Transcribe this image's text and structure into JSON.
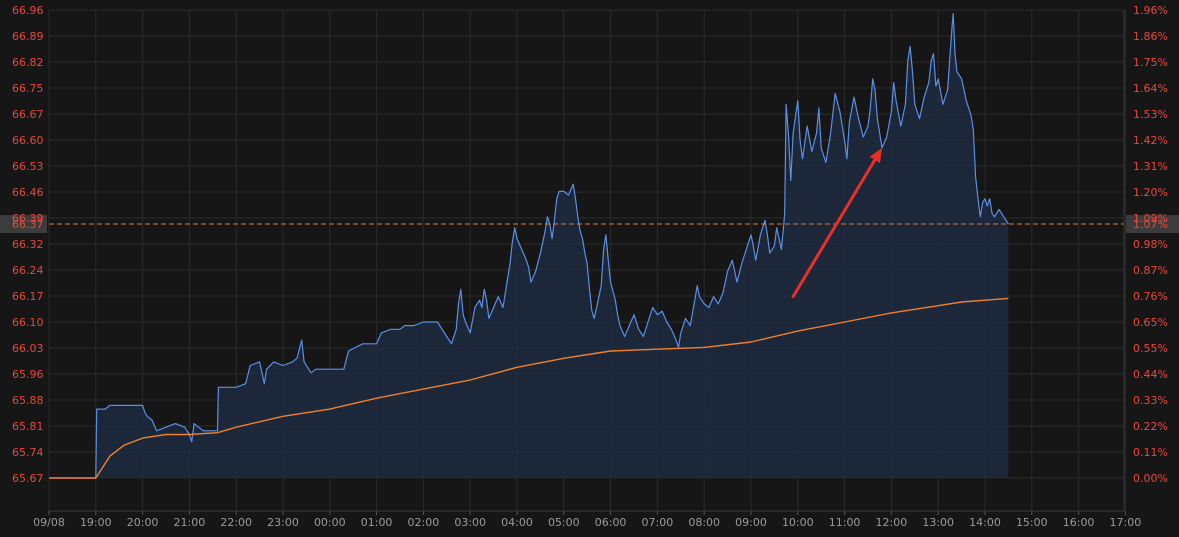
{
  "chart_data": {
    "type": "line",
    "title": "",
    "xlabel": "",
    "ylabel": "",
    "x_ticks": [
      "09/08",
      "19:00",
      "20:00",
      "21:00",
      "22:00",
      "23:00",
      "00:00",
      "01:00",
      "02:00",
      "03:00",
      "04:00",
      "05:00",
      "06:00",
      "07:00",
      "08:00",
      "09:00",
      "10:00",
      "11:00",
      "12:00",
      "13:00",
      "14:00",
      "15:00",
      "16:00",
      "17:00"
    ],
    "x_range_hours": [
      0,
      23.3
    ],
    "y_ticks_left": [
      "66.96",
      "66.89",
      "66.82",
      "66.75",
      "66.67",
      "66.60",
      "66.53",
      "66.46",
      "66.39",
      "66.32",
      "66.24",
      "66.17",
      "66.10",
      "66.03",
      "65.96",
      "65.88",
      "65.81",
      "65.74",
      "65.67"
    ],
    "y_ticks_right": [
      "1.96%",
      "1.86%",
      "1.75%",
      "1.64%",
      "1.53%",
      "1.42%",
      "1.31%",
      "1.20%",
      "1.09%",
      "0.98%",
      "0.87%",
      "0.76%",
      "0.65%",
      "0.55%",
      "0.44%",
      "0.33%",
      "0.22%",
      "0.11%",
      "0.00%"
    ],
    "ylim": [
      65.67,
      66.96
    ],
    "grid": true,
    "reference_line": {
      "value": 66.37,
      "label": "66.37",
      "right_label": "1.07%",
      "style": "dashed",
      "color": "#e07a2e"
    },
    "series": [
      {
        "color": "#5b8fe6",
        "fill": "#1f2c44",
        "points": [
          [
            0.0,
            65.67
          ],
          [
            0.9,
            65.67
          ],
          [
            1.0,
            65.67
          ],
          [
            1.02,
            65.86
          ],
          [
            1.2,
            65.86
          ],
          [
            1.3,
            65.87
          ],
          [
            2.0,
            65.87
          ],
          [
            2.05,
            65.85
          ],
          [
            2.1,
            65.84
          ],
          [
            2.2,
            65.83
          ],
          [
            2.3,
            65.8
          ],
          [
            2.5,
            65.81
          ],
          [
            2.7,
            65.82
          ],
          [
            2.9,
            65.81
          ],
          [
            3.0,
            65.79
          ],
          [
            3.05,
            65.77
          ],
          [
            3.1,
            65.82
          ],
          [
            3.3,
            65.8
          ],
          [
            3.6,
            65.8
          ],
          [
            3.62,
            65.92
          ],
          [
            3.8,
            65.92
          ],
          [
            4.0,
            65.92
          ],
          [
            4.2,
            65.93
          ],
          [
            4.3,
            65.98
          ],
          [
            4.5,
            65.99
          ],
          [
            4.6,
            65.93
          ],
          [
            4.65,
            65.97
          ],
          [
            4.8,
            65.99
          ],
          [
            5.0,
            65.98
          ],
          [
            5.2,
            65.99
          ],
          [
            5.3,
            66.0
          ],
          [
            5.4,
            66.05
          ],
          [
            5.45,
            65.99
          ],
          [
            5.5,
            65.98
          ],
          [
            5.6,
            65.96
          ],
          [
            5.7,
            65.97
          ],
          [
            6.0,
            65.97
          ],
          [
            6.3,
            65.97
          ],
          [
            6.4,
            66.02
          ],
          [
            6.7,
            66.04
          ],
          [
            7.0,
            66.04
          ],
          [
            7.1,
            66.07
          ],
          [
            7.3,
            66.08
          ],
          [
            7.5,
            66.08
          ],
          [
            7.6,
            66.09
          ],
          [
            7.8,
            66.09
          ],
          [
            8.0,
            66.1
          ],
          [
            8.3,
            66.1
          ],
          [
            8.4,
            66.08
          ],
          [
            8.5,
            66.06
          ],
          [
            8.6,
            66.04
          ],
          [
            8.7,
            66.08
          ],
          [
            8.75,
            66.15
          ],
          [
            8.8,
            66.19
          ],
          [
            8.85,
            66.12
          ],
          [
            8.9,
            66.1
          ],
          [
            9.0,
            66.07
          ],
          [
            9.1,
            66.14
          ],
          [
            9.2,
            66.16
          ],
          [
            9.25,
            66.14
          ],
          [
            9.3,
            66.19
          ],
          [
            9.35,
            66.16
          ],
          [
            9.4,
            66.11
          ],
          [
            9.5,
            66.14
          ],
          [
            9.6,
            66.17
          ],
          [
            9.7,
            66.14
          ],
          [
            9.8,
            66.22
          ],
          [
            9.85,
            66.26
          ],
          [
            9.9,
            66.32
          ],
          [
            9.95,
            66.36
          ],
          [
            10.0,
            66.33
          ],
          [
            10.1,
            66.3
          ],
          [
            10.2,
            66.27
          ],
          [
            10.25,
            66.25
          ],
          [
            10.3,
            66.21
          ],
          [
            10.4,
            66.24
          ],
          [
            10.5,
            66.29
          ],
          [
            10.6,
            66.35
          ],
          [
            10.65,
            66.39
          ],
          [
            10.7,
            66.37
          ],
          [
            10.75,
            66.33
          ],
          [
            10.8,
            66.38
          ],
          [
            10.85,
            66.44
          ],
          [
            10.9,
            66.46
          ],
          [
            11.0,
            66.46
          ],
          [
            11.1,
            66.45
          ],
          [
            11.2,
            66.48
          ],
          [
            11.25,
            66.44
          ],
          [
            11.3,
            66.39
          ],
          [
            11.35,
            66.35
          ],
          [
            11.4,
            66.33
          ],
          [
            11.45,
            66.29
          ],
          [
            11.5,
            66.26
          ],
          [
            11.55,
            66.19
          ],
          [
            11.6,
            66.13
          ],
          [
            11.65,
            66.11
          ],
          [
            11.7,
            66.14
          ],
          [
            11.8,
            66.2
          ],
          [
            11.85,
            66.3
          ],
          [
            11.9,
            66.34
          ],
          [
            11.95,
            66.27
          ],
          [
            12.0,
            66.21
          ],
          [
            12.1,
            66.16
          ],
          [
            12.15,
            66.12
          ],
          [
            12.2,
            66.09
          ],
          [
            12.3,
            66.06
          ],
          [
            12.4,
            66.09
          ],
          [
            12.5,
            66.12
          ],
          [
            12.6,
            66.08
          ],
          [
            12.7,
            66.06
          ],
          [
            12.8,
            66.1
          ],
          [
            12.9,
            66.14
          ],
          [
            13.0,
            66.12
          ],
          [
            13.1,
            66.13
          ],
          [
            13.2,
            66.1
          ],
          [
            13.3,
            66.08
          ],
          [
            13.4,
            66.05
          ],
          [
            13.45,
            66.03
          ],
          [
            13.5,
            66.07
          ],
          [
            13.6,
            66.11
          ],
          [
            13.7,
            66.09
          ],
          [
            13.8,
            66.16
          ],
          [
            13.85,
            66.2
          ],
          [
            13.9,
            66.17
          ],
          [
            14.0,
            66.15
          ],
          [
            14.1,
            66.14
          ],
          [
            14.2,
            66.17
          ],
          [
            14.3,
            66.15
          ],
          [
            14.4,
            66.18
          ],
          [
            14.5,
            66.24
          ],
          [
            14.6,
            66.27
          ],
          [
            14.7,
            66.21
          ],
          [
            14.8,
            66.26
          ],
          [
            14.9,
            66.3
          ],
          [
            15.0,
            66.34
          ],
          [
            15.05,
            66.31
          ],
          [
            15.1,
            66.27
          ],
          [
            15.2,
            66.34
          ],
          [
            15.3,
            66.38
          ],
          [
            15.35,
            66.34
          ],
          [
            15.4,
            66.29
          ],
          [
            15.5,
            66.31
          ],
          [
            15.55,
            66.36
          ],
          [
            15.6,
            66.33
          ],
          [
            15.65,
            66.3
          ],
          [
            15.7,
            66.37
          ],
          [
            15.72,
            66.4
          ],
          [
            15.75,
            66.7
          ],
          [
            15.8,
            66.62
          ],
          [
            15.85,
            66.49
          ],
          [
            15.9,
            66.62
          ],
          [
            16.0,
            66.71
          ],
          [
            16.05,
            66.6
          ],
          [
            16.1,
            66.55
          ],
          [
            16.2,
            66.64
          ],
          [
            16.3,
            66.57
          ],
          [
            16.4,
            66.62
          ],
          [
            16.45,
            66.69
          ],
          [
            16.5,
            66.58
          ],
          [
            16.6,
            66.54
          ],
          [
            16.7,
            66.62
          ],
          [
            16.8,
            66.73
          ],
          [
            16.9,
            66.68
          ],
          [
            17.0,
            66.6
          ],
          [
            17.05,
            66.55
          ],
          [
            17.1,
            66.65
          ],
          [
            17.2,
            66.72
          ],
          [
            17.3,
            66.66
          ],
          [
            17.4,
            66.61
          ],
          [
            17.5,
            66.64
          ],
          [
            17.55,
            66.69
          ],
          [
            17.6,
            66.77
          ],
          [
            17.65,
            66.74
          ],
          [
            17.7,
            66.66
          ],
          [
            17.8,
            66.58
          ],
          [
            17.9,
            66.61
          ],
          [
            18.0,
            66.68
          ],
          [
            18.05,
            66.76
          ],
          [
            18.1,
            66.71
          ],
          [
            18.2,
            66.64
          ],
          [
            18.3,
            66.7
          ],
          [
            18.35,
            66.82
          ],
          [
            18.4,
            66.86
          ],
          [
            18.45,
            66.79
          ],
          [
            18.5,
            66.7
          ],
          [
            18.6,
            66.66
          ],
          [
            18.7,
            66.72
          ],
          [
            18.8,
            66.76
          ],
          [
            18.85,
            66.82
          ],
          [
            18.9,
            66.84
          ],
          [
            18.95,
            66.75
          ],
          [
            19.0,
            66.77
          ],
          [
            19.1,
            66.7
          ],
          [
            19.2,
            66.74
          ],
          [
            19.3,
            66.92
          ],
          [
            19.32,
            66.95
          ],
          [
            19.36,
            66.84
          ],
          [
            19.4,
            66.79
          ],
          [
            19.5,
            66.77
          ],
          [
            19.6,
            66.71
          ],
          [
            19.7,
            66.67
          ],
          [
            19.75,
            66.63
          ],
          [
            19.8,
            66.5
          ],
          [
            19.85,
            66.44
          ],
          [
            19.9,
            66.39
          ],
          [
            19.95,
            66.43
          ],
          [
            20.0,
            66.44
          ],
          [
            20.05,
            66.42
          ],
          [
            20.1,
            66.44
          ],
          [
            20.15,
            66.4
          ],
          [
            20.2,
            66.39
          ],
          [
            20.3,
            66.41
          ],
          [
            20.4,
            66.39
          ],
          [
            20.5,
            66.37
          ]
        ]
      },
      {
        "color": "#f0802a",
        "points": [
          [
            0.0,
            65.67
          ],
          [
            1.0,
            65.67
          ],
          [
            1.3,
            65.73
          ],
          [
            1.6,
            65.76
          ],
          [
            2.0,
            65.78
          ],
          [
            2.5,
            65.79
          ],
          [
            3.0,
            65.79
          ],
          [
            3.6,
            65.795
          ],
          [
            4.0,
            65.81
          ],
          [
            5.0,
            65.84
          ],
          [
            6.0,
            65.86
          ],
          [
            7.0,
            65.89
          ],
          [
            8.0,
            65.915
          ],
          [
            9.0,
            65.94
          ],
          [
            10.0,
            65.975
          ],
          [
            11.0,
            66.0
          ],
          [
            12.0,
            66.02
          ],
          [
            13.0,
            66.025
          ],
          [
            14.0,
            66.03
          ],
          [
            15.0,
            66.045
          ],
          [
            16.0,
            66.075
          ],
          [
            17.0,
            66.1
          ],
          [
            18.0,
            66.125
          ],
          [
            19.0,
            66.145
          ],
          [
            19.5,
            66.155
          ],
          [
            20.0,
            66.16
          ],
          [
            20.5,
            66.165
          ]
        ]
      }
    ],
    "annotations": [
      {
        "type": "arrow",
        "color": "#e8302a",
        "from": [
          15.9,
          66.17
        ],
        "to": [
          17.8,
          66.58
        ]
      }
    ]
  }
}
